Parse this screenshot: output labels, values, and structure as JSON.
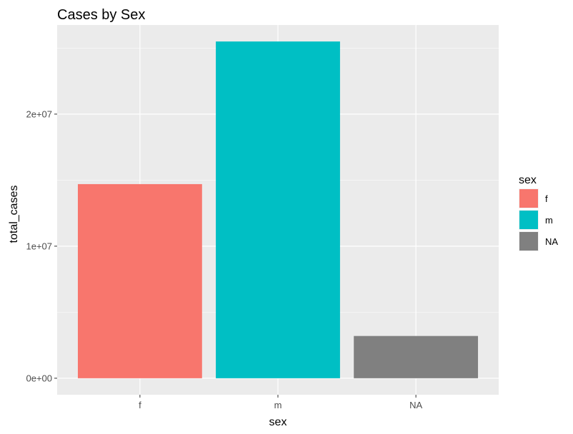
{
  "chart_data": {
    "type": "bar",
    "title": "Cases by Sex",
    "xlabel": "sex",
    "ylabel": "total_cases",
    "categories": [
      "f",
      "m",
      "NA"
    ],
    "values": [
      14700000,
      25500000,
      3200000
    ],
    "colors": [
      "#F8766D",
      "#00BFC4",
      "#808080"
    ],
    "ylim": [
      -1250000,
      26750000
    ],
    "yticks": [
      0,
      10000000,
      20000000
    ],
    "ytick_labels": [
      "0e+00",
      "1e+07",
      "2e+07"
    ],
    "grid": true,
    "panel_background": "#EBEBEB",
    "legend": {
      "title": "sex",
      "placement": "right",
      "entries": [
        "f",
        "m",
        "NA"
      ]
    }
  }
}
